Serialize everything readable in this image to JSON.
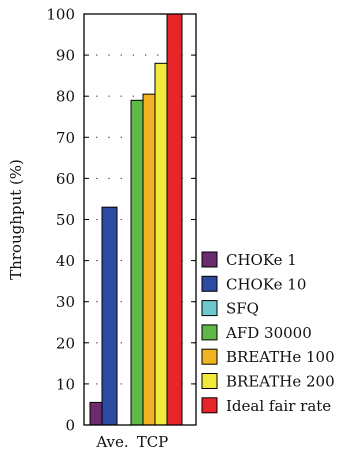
{
  "chart_data": {
    "type": "bar",
    "ylabel": "Throughput (%)",
    "xlabel": "",
    "ylim": [
      0,
      100
    ],
    "yticks": [
      0,
      10,
      20,
      30,
      40,
      50,
      60,
      70,
      80,
      90,
      100
    ],
    "grid": "dotted horizontal",
    "legend_position": "right",
    "categories": [
      "Ave.",
      "TCP"
    ],
    "series": [
      {
        "name": "CHOKe 1",
        "color": "#6b2c6e",
        "values": [
          5.5,
          null
        ]
      },
      {
        "name": "CHOKe 10",
        "color": "#2b4aa0",
        "values": [
          53,
          null
        ]
      },
      {
        "name": "SFQ",
        "color": "#6ec6cf",
        "values": [
          null,
          null
        ]
      },
      {
        "name": "AFD 30000",
        "color": "#5fb847",
        "values": [
          null,
          79
        ]
      },
      {
        "name": "BREATHe 100",
        "color": "#f0b323",
        "values": [
          null,
          80.5
        ]
      },
      {
        "name": "BREATHe 200",
        "color": "#f2ea3a",
        "values": [
          null,
          88
        ]
      },
      {
        "name": "Ideal fair rate",
        "color": "#e8262a",
        "values": [
          null,
          100
        ]
      }
    ]
  }
}
